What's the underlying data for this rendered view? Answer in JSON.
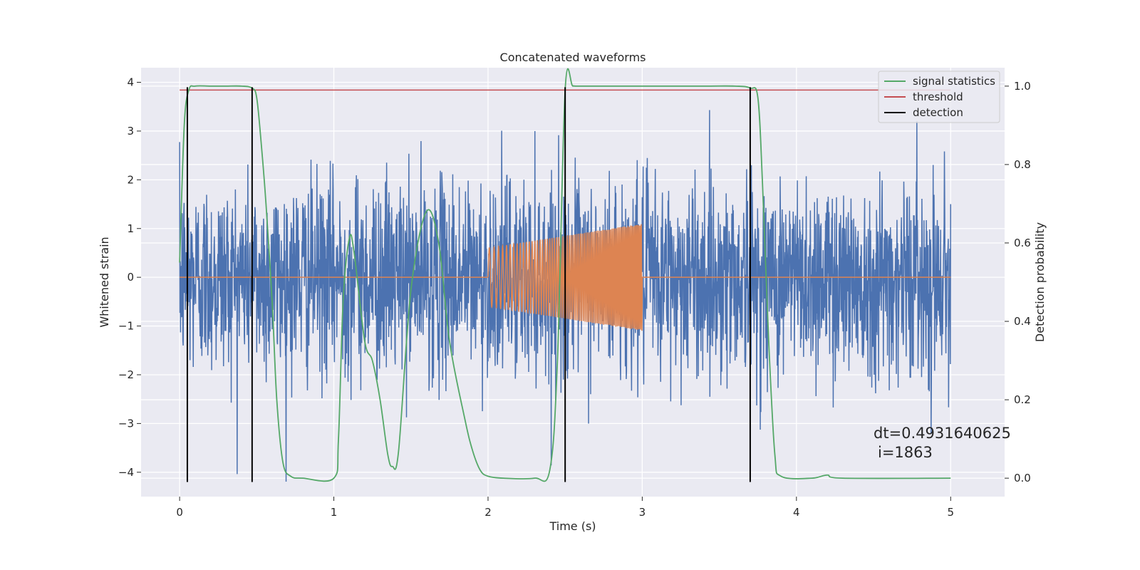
{
  "chart_data": {
    "type": "line",
    "title": "Concatenated waveforms",
    "xlabel": "Time (s)",
    "ylabel": "Whitened strain",
    "ylabel_right": "Detection probability",
    "xlim": [
      -0.25,
      5.35
    ],
    "ylim": [
      -4.5,
      4.3
    ],
    "ylim_right": [
      -0.047,
      1.047
    ],
    "x_ticks": [
      0,
      1,
      2,
      3,
      4,
      5
    ],
    "y_ticks": [
      -4,
      -3,
      -2,
      -1,
      0,
      1,
      2,
      3,
      4
    ],
    "y_ticks_right": [
      0.0,
      0.2,
      0.4,
      0.6,
      0.8,
      1.0
    ],
    "x_tick_labels": [
      "0",
      "1",
      "2",
      "3",
      "4",
      "5"
    ],
    "y_tick_labels": [
      "−4",
      "−3",
      "−2",
      "−1",
      "0",
      "1",
      "2",
      "3",
      "4"
    ],
    "y_tick_labels_right": [
      "0.0",
      "0.2",
      "0.4",
      "0.6",
      "0.8",
      "1.0"
    ],
    "grid": true,
    "legend_position": "top-right",
    "colors": {
      "background": "#eaeaf2",
      "grid": "#ffffff",
      "strain": "#4c72b0",
      "injected": "#dd8452",
      "signal_statistics": "#55a868",
      "threshold": "#c44e52",
      "detection": "#000000"
    },
    "legend": [
      "signal statistics",
      "threshold",
      "detection"
    ],
    "series": [
      {
        "name": "strain",
        "axis": "left",
        "description_values": "noisy whitened strain over 0–5 s",
        "x_range": [
          0,
          5
        ],
        "amplitude_envelope": [
          -4.2,
          3.9
        ]
      },
      {
        "name": "injected",
        "axis": "left",
        "x_range": [
          0,
          5
        ],
        "chirp": {
          "start": 2.0,
          "end": 3.0,
          "amplitude_start": 0.6,
          "amplitude_end": 1.1,
          "frequency_start": 30,
          "frequency_end": 120
        }
      },
      {
        "name": "signal statistics",
        "axis": "right",
        "x": [
          0.0,
          0.03,
          0.06,
          0.1,
          0.2,
          0.3,
          0.4,
          0.47,
          0.5,
          0.53,
          0.56,
          0.6,
          0.63,
          0.67,
          0.72,
          0.8,
          1.0,
          1.03,
          1.06,
          1.1,
          1.13,
          1.2,
          1.25,
          1.3,
          1.35,
          1.38,
          1.42,
          1.5,
          1.6,
          1.68,
          1.75,
          1.85,
          1.9,
          1.95,
          2.0,
          2.1,
          2.3,
          2.4,
          2.45,
          2.5,
          2.55,
          2.6,
          3.0,
          3.4,
          3.6,
          3.7,
          3.75,
          3.78,
          3.82,
          3.86,
          3.9,
          4.1,
          4.2,
          4.3,
          5.0
        ],
        "y": [
          0.55,
          0.9,
          0.99,
          1.0,
          1.0,
          1.0,
          1.0,
          0.995,
          0.97,
          0.85,
          0.7,
          0.45,
          0.2,
          0.04,
          0.005,
          0.0,
          0.0,
          0.1,
          0.45,
          0.61,
          0.58,
          0.35,
          0.3,
          0.2,
          0.06,
          0.03,
          0.07,
          0.48,
          0.68,
          0.6,
          0.35,
          0.15,
          0.07,
          0.02,
          0.005,
          0.0,
          0.0,
          0.02,
          0.3,
          0.99,
          1.0,
          1.0,
          1.0,
          1.0,
          1.0,
          0.995,
          0.97,
          0.75,
          0.35,
          0.06,
          0.005,
          0.0,
          0.008,
          0.0,
          0.0
        ]
      },
      {
        "name": "threshold",
        "axis": "right",
        "x": [
          0,
          5
        ],
        "y": [
          0.99,
          0.99
        ]
      },
      {
        "name": "detection",
        "axis": "left",
        "x": [
          0.05,
          0.47,
          2.5,
          3.7
        ],
        "y_range": [
          -4.2,
          3.9
        ]
      }
    ],
    "annotation": {
      "line1": "dt=0.4931640625",
      "line2": "i=1863"
    }
  }
}
